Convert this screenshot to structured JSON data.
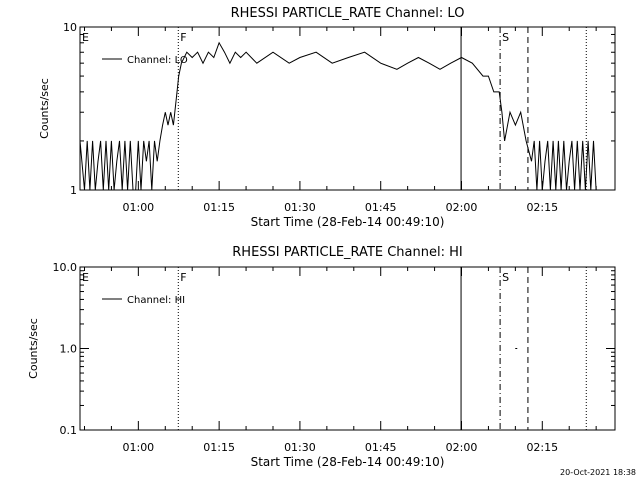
{
  "chart_data": [
    {
      "type": "line",
      "title": "RHESSI PARTICLE_RATE Channel: LO",
      "xlabel": "Start Time (28-Feb-14 00:49:10)",
      "ylabel": "Counts/sec",
      "yscale": "log",
      "ylim": [
        1,
        10
      ],
      "yticks": [
        {
          "v": 1,
          "label": "1"
        },
        {
          "v": 10,
          "label": "10"
        }
      ],
      "xlim": [
        "00:49:10",
        "02:28:30"
      ],
      "xticks": [
        "01:00",
        "01:15",
        "01:30",
        "01:45",
        "02:00",
        "02:15"
      ],
      "legend": "top-left",
      "series": [
        {
          "name": "Channel: LO",
          "x": [
            "00:49:10",
            "00:50:00",
            "00:50:30",
            "00:51:00",
            "00:51:30",
            "00:52:00",
            "00:52:30",
            "00:53:00",
            "00:53:30",
            "00:54:00",
            "00:54:30",
            "00:55:00",
            "00:55:30",
            "00:56:00",
            "00:56:30",
            "00:57:00",
            "00:57:30",
            "00:58:00",
            "00:58:30",
            "00:59:00",
            "00:59:30",
            "01:00:00",
            "01:00:30",
            "01:01:00",
            "01:01:30",
            "01:02:00",
            "01:02:30",
            "01:03:00",
            "01:03:30",
            "01:04:00",
            "01:04:30",
            "01:05:00",
            "01:05:30",
            "01:06:00",
            "01:06:30",
            "01:07:00",
            "01:07:30",
            "01:08:00",
            "01:09:00",
            "01:10:00",
            "01:11:00",
            "01:12:00",
            "01:13:00",
            "01:14:00",
            "01:15:00",
            "01:16:00",
            "01:17:00",
            "01:18:00",
            "01:19:00",
            "01:20:00",
            "01:22:00",
            "01:25:00",
            "01:28:00",
            "01:30:00",
            "01:33:00",
            "01:36:00",
            "01:39:00",
            "01:42:00",
            "01:45:00",
            "01:48:00",
            "01:50:00",
            "01:52:00",
            "01:54:00",
            "01:56:00",
            "01:58:00",
            "02:00:00",
            "02:02:00",
            "02:04:00",
            "02:05:00",
            "02:06:00",
            "02:07:00",
            "02:07:30",
            "02:08:00",
            "02:09:00",
            "02:10:00",
            "02:11:00",
            "02:12:00",
            "02:13:00",
            "02:13:30",
            "02:14:00",
            "02:14:30",
            "02:15:00",
            "02:15:30",
            "02:16:00",
            "02:16:30",
            "02:17:00",
            "02:17:30",
            "02:18:00",
            "02:18:30",
            "02:19:00",
            "02:19:30",
            "02:20:00",
            "02:20:30",
            "02:21:00",
            "02:21:30",
            "02:22:00",
            "02:22:30",
            "02:23:00",
            "02:23:30",
            "02:24:00",
            "02:24:30",
            "02:25:00"
          ],
          "y": [
            2,
            1,
            2,
            1,
            2,
            1,
            1.5,
            2,
            1,
            2,
            1,
            2,
            1,
            1.5,
            2,
            1,
            2,
            1,
            2,
            1,
            1,
            2,
            1,
            2,
            1.5,
            2,
            1,
            2,
            1.5,
            2,
            2.5,
            3,
            2.5,
            3,
            2.5,
            3.5,
            5,
            6,
            7,
            6.5,
            7,
            6,
            7,
            6.5,
            8,
            7,
            6,
            7,
            6.5,
            7,
            6,
            7,
            6,
            6.5,
            7,
            6,
            6.5,
            7,
            6,
            5.5,
            6,
            6.5,
            6,
            5.5,
            6,
            6.5,
            6,
            5,
            5,
            4,
            4,
            3,
            2,
            3,
            2.5,
            3,
            2,
            1.5,
            2,
            1,
            2,
            1,
            1.5,
            2,
            1,
            2,
            1,
            2,
            1,
            2,
            1,
            1.5,
            2,
            1,
            2,
            1,
            2,
            1,
            2,
            1,
            2,
            1
          ]
        }
      ],
      "markers": [
        {
          "t": "00:49:10",
          "label": "E",
          "style": "solid"
        },
        {
          "t": "01:07:25",
          "label": "F",
          "style": "dotted"
        },
        {
          "t": "01:59:55",
          "label": "",
          "style": "solid"
        },
        {
          "t": "02:07:10",
          "label": "S",
          "style": "dashdot"
        },
        {
          "t": "02:12:20",
          "label": "",
          "style": "dashed"
        },
        {
          "t": "02:23:10",
          "label": "",
          "style": "dotted"
        }
      ]
    },
    {
      "type": "line",
      "title": "RHESSI PARTICLE_RATE Channel: HI",
      "xlabel": "Start Time (28-Feb-14 00:49:10)",
      "ylabel": "Counts/sec",
      "yscale": "log",
      "ylim": [
        0.1,
        10
      ],
      "yticks": [
        {
          "v": 0.1,
          "label": "0.1"
        },
        {
          "v": 1,
          "label": "1.0"
        },
        {
          "v": 10,
          "label": "10.0"
        }
      ],
      "xlim": [
        "00:49:10",
        "02:28:30"
      ],
      "xticks": [
        "01:00",
        "01:15",
        "01:30",
        "01:45",
        "02:00",
        "02:15"
      ],
      "legend": "top-left",
      "series": [
        {
          "name": "Channel: HI",
          "x": [
            "02:10:10"
          ],
          "y": [
            1
          ]
        }
      ],
      "markers": [
        {
          "t": "00:49:10",
          "label": "E",
          "style": "solid"
        },
        {
          "t": "01:07:25",
          "label": "F",
          "style": "dotted"
        },
        {
          "t": "01:59:55",
          "label": "",
          "style": "solid"
        },
        {
          "t": "02:07:10",
          "label": "S",
          "style": "dashdot"
        },
        {
          "t": "02:12:20",
          "label": "",
          "style": "dashed"
        },
        {
          "t": "02:23:10",
          "label": "",
          "style": "dotted"
        }
      ]
    }
  ],
  "footer_timestamp": "20-Oct-2021 18:38"
}
